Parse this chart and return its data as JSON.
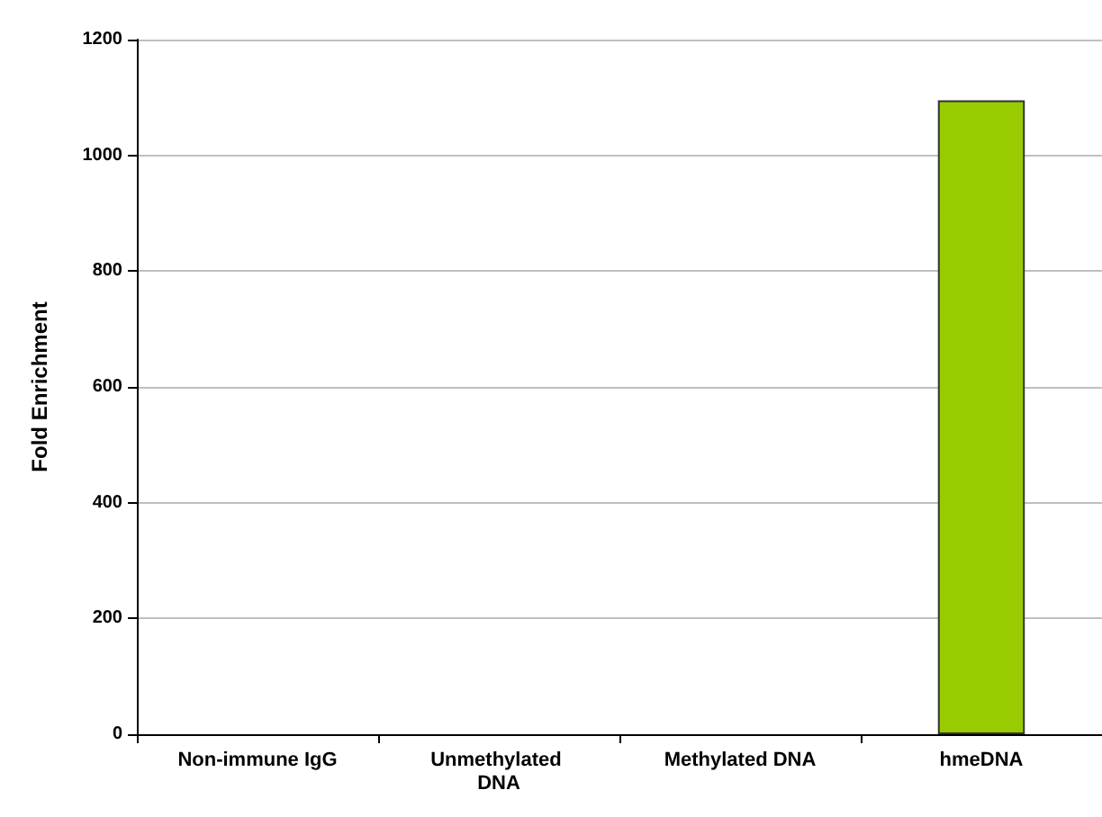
{
  "chart_data": {
    "type": "bar",
    "ylabel": "Fold Enrichment",
    "categories": [
      "Non-immune IgG",
      "Unmethylated DNA",
      "Methylated DNA",
      "hmeDNA"
    ],
    "values": [
      0,
      0,
      0,
      1095
    ],
    "color": "#99cc00",
    "ylim": [
      0,
      1200
    ],
    "yticks": [
      0,
      200,
      400,
      600,
      800,
      1000,
      1200
    ],
    "grid": "y"
  }
}
